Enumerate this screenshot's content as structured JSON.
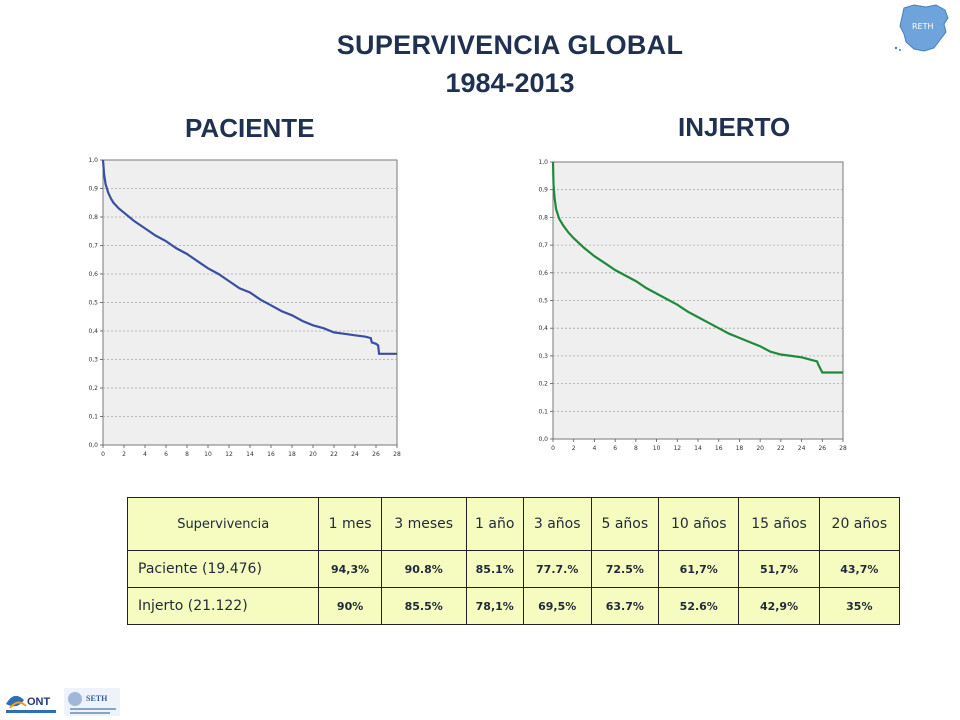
{
  "title": "SUPERVIVENCIA GLOBAL",
  "years": "1984-2013",
  "logo_text": {
    "reth": "RETH",
    "ont": "ONT",
    "seth": "SETH"
  },
  "chart_data": [
    {
      "type": "line",
      "title": "PACIENTE",
      "color": "#3a4fa0",
      "xlim": [
        0,
        28
      ],
      "ylim": [
        0,
        1
      ],
      "x_ticks": [
        "0",
        "2",
        "4",
        "6",
        "8",
        "10",
        "12",
        "14",
        "16",
        "18",
        "20",
        "22",
        "24",
        "26",
        "28"
      ],
      "y_ticks": [
        "0,0",
        "0,1",
        "0,2",
        "0,3",
        "0,4",
        "0,5",
        "0,6",
        "0,7",
        "0,8",
        "0,9",
        "1,0"
      ],
      "grid": true,
      "series": [
        {
          "x": [
            0,
            0.1,
            0.25,
            0.5,
            0.75,
            1,
            1.5,
            2,
            3,
            4,
            5,
            6,
            7,
            8,
            9,
            10,
            11,
            12,
            13,
            14,
            15,
            16,
            17,
            18,
            19,
            20,
            21,
            22,
            23,
            24,
            25,
            25.5,
            25.6,
            26,
            26.2,
            26.3,
            28
          ],
          "y": [
            1.0,
            0.95,
            0.915,
            0.885,
            0.865,
            0.85,
            0.83,
            0.815,
            0.785,
            0.76,
            0.735,
            0.715,
            0.69,
            0.67,
            0.645,
            0.62,
            0.6,
            0.575,
            0.55,
            0.535,
            0.51,
            0.49,
            0.47,
            0.455,
            0.435,
            0.42,
            0.41,
            0.395,
            0.39,
            0.385,
            0.38,
            0.375,
            0.36,
            0.355,
            0.35,
            0.32,
            0.32
          ]
        }
      ]
    },
    {
      "type": "line",
      "title": "INJERTO",
      "color": "#1e8a3c",
      "xlim": [
        0,
        28
      ],
      "ylim": [
        0,
        1
      ],
      "x_ticks": [
        "0",
        "2",
        "4",
        "6",
        "8",
        "10",
        "12",
        "14",
        "16",
        "18",
        "20",
        "22",
        "24",
        "26",
        "28"
      ],
      "y_ticks": [
        "0,0",
        "0,1",
        "0,2",
        "0,3",
        "0,4",
        "0,5",
        "0,6",
        "0,7",
        "0,8",
        "0,9",
        "1,0"
      ],
      "grid": true,
      "series": [
        {
          "x": [
            0,
            0.05,
            0.15,
            0.3,
            0.6,
            1,
            1.5,
            2,
            3,
            4,
            5,
            6,
            7,
            8,
            9,
            10,
            11,
            12,
            13,
            14,
            15,
            16,
            17,
            18,
            19,
            20,
            21,
            22,
            23,
            24,
            25,
            25.5,
            25.6,
            26,
            28
          ],
          "y": [
            1.0,
            0.92,
            0.87,
            0.83,
            0.795,
            0.77,
            0.745,
            0.725,
            0.69,
            0.66,
            0.635,
            0.61,
            0.59,
            0.57,
            0.545,
            0.525,
            0.505,
            0.485,
            0.46,
            0.44,
            0.42,
            0.4,
            0.38,
            0.365,
            0.35,
            0.335,
            0.315,
            0.305,
            0.3,
            0.295,
            0.285,
            0.28,
            0.27,
            0.24,
            0.24
          ]
        }
      ]
    },
    {
      "type": "table",
      "header": [
        "Supervivencia",
        "1 mes",
        "3 meses",
        "1 año",
        "3 años",
        "5 años",
        "10 años",
        "15 años",
        "20 años"
      ],
      "rows": [
        {
          "label": "Paciente (19.476)",
          "values": [
            "94,3%",
            "90.8%",
            "85.1%",
            "77.7.%",
            "72.5%",
            "61,7%",
            "51,7%",
            "43,7%"
          ]
        },
        {
          "label": "Injerto (21.122)",
          "values": [
            "90%",
            "85.5%",
            "78,1%",
            "69,5%",
            "63.7%",
            "52.6%",
            "42,9%",
            "35%"
          ]
        }
      ]
    }
  ]
}
